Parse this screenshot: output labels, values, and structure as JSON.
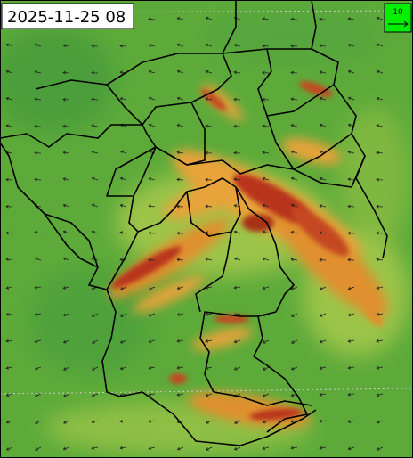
{
  "timestamp": "2025-11-25 08",
  "legend": {
    "label": "10"
  }
}
